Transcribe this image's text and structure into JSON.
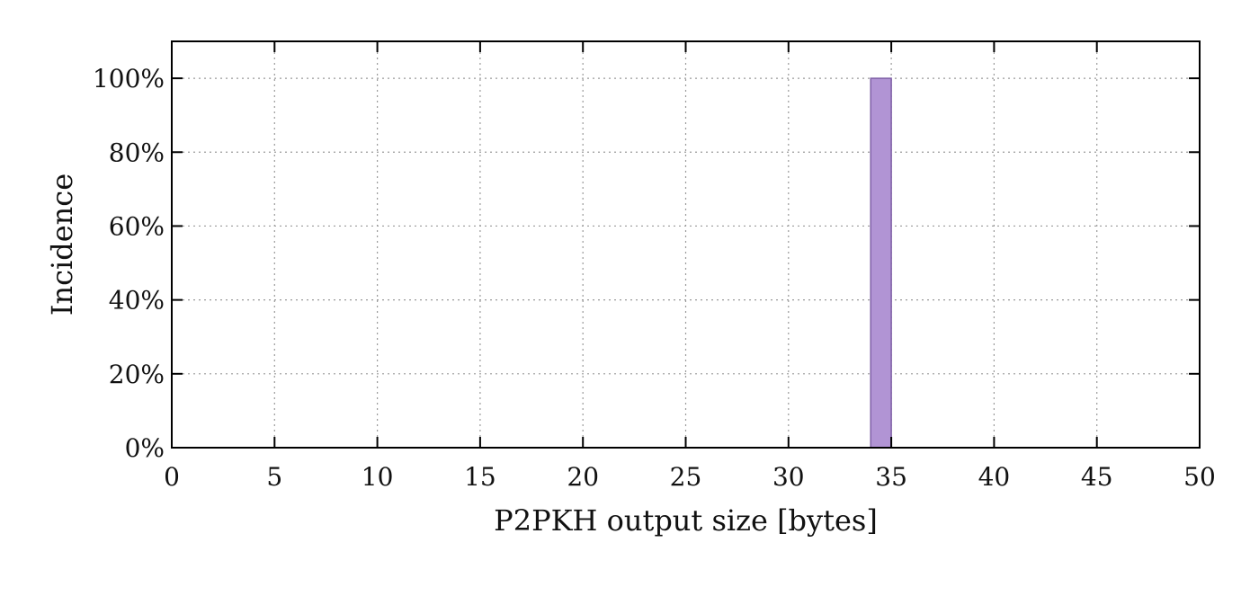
{
  "chart_data": {
    "type": "bar",
    "title": "",
    "xlabel": "P2PKH output size [bytes]",
    "ylabel": "Incidence",
    "xlim": [
      0,
      50
    ],
    "ylim": [
      0,
      110
    ],
    "xticks": [
      0,
      5,
      10,
      15,
      20,
      25,
      30,
      35,
      40,
      45,
      50
    ],
    "xtick_labels": [
      "0",
      "5",
      "10",
      "15",
      "20",
      "25",
      "30",
      "35",
      "40",
      "45",
      "50"
    ],
    "yticks": [
      0,
      20,
      40,
      60,
      80,
      100
    ],
    "ytick_labels": [
      "0%",
      "20%",
      "40%",
      "60%",
      "80%",
      "100%"
    ],
    "grid": true,
    "bar_color": "#b194d4",
    "bar_edge_color": "#7e5fa6",
    "bars": [
      {
        "x_start": 34,
        "x_end": 35,
        "value": 100
      }
    ]
  }
}
